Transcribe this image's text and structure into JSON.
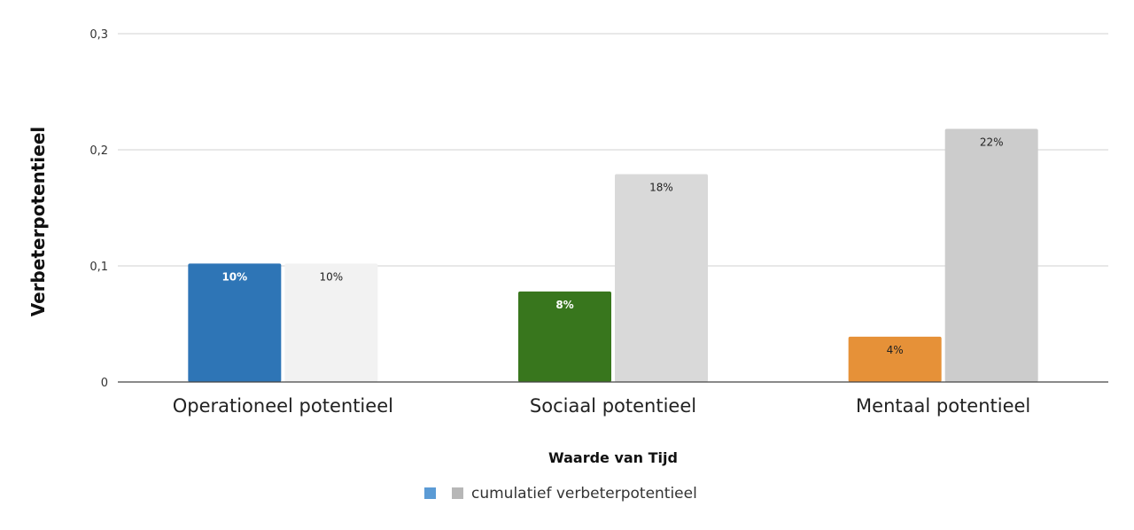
{
  "chart_data": {
    "type": "bar",
    "title": "",
    "xlabel": "Waarde van Tijd",
    "ylabel": "Verbeterpotentieel",
    "ylim": [
      0,
      0.3
    ],
    "yticks": [
      {
        "v": 0,
        "label": "0"
      },
      {
        "v": 0.1,
        "label": "0,1"
      },
      {
        "v": 0.2,
        "label": "0,2"
      },
      {
        "v": 0.3,
        "label": "0,3"
      }
    ],
    "grid": true,
    "categories": [
      "Operationeel potentieel",
      "Sociaal potentieel",
      "Mentaal potentieel"
    ],
    "series": [
      {
        "name": "",
        "values": [
          0.102,
          0.078,
          0.039
        ],
        "labels": [
          "10%",
          "8%",
          "4%"
        ],
        "colors": [
          "#2e75b6",
          "#38761d",
          "#e69138"
        ],
        "label_colors": [
          "#ffffff",
          "#ffffff",
          "#222222"
        ],
        "legend_color": "#5b9bd5"
      },
      {
        "name": "cumulatief verbeterpotentieel",
        "values": [
          0.102,
          0.179,
          0.218
        ],
        "labels": [
          "10%",
          "18%",
          "22%"
        ],
        "colors": [
          "#f2f2f2",
          "#d9d9d9",
          "#cccccc"
        ],
        "label_colors": [
          "#222222",
          "#222222",
          "#222222"
        ],
        "legend_color": "#b7b7b7"
      }
    ],
    "legend_position": "bottom"
  }
}
